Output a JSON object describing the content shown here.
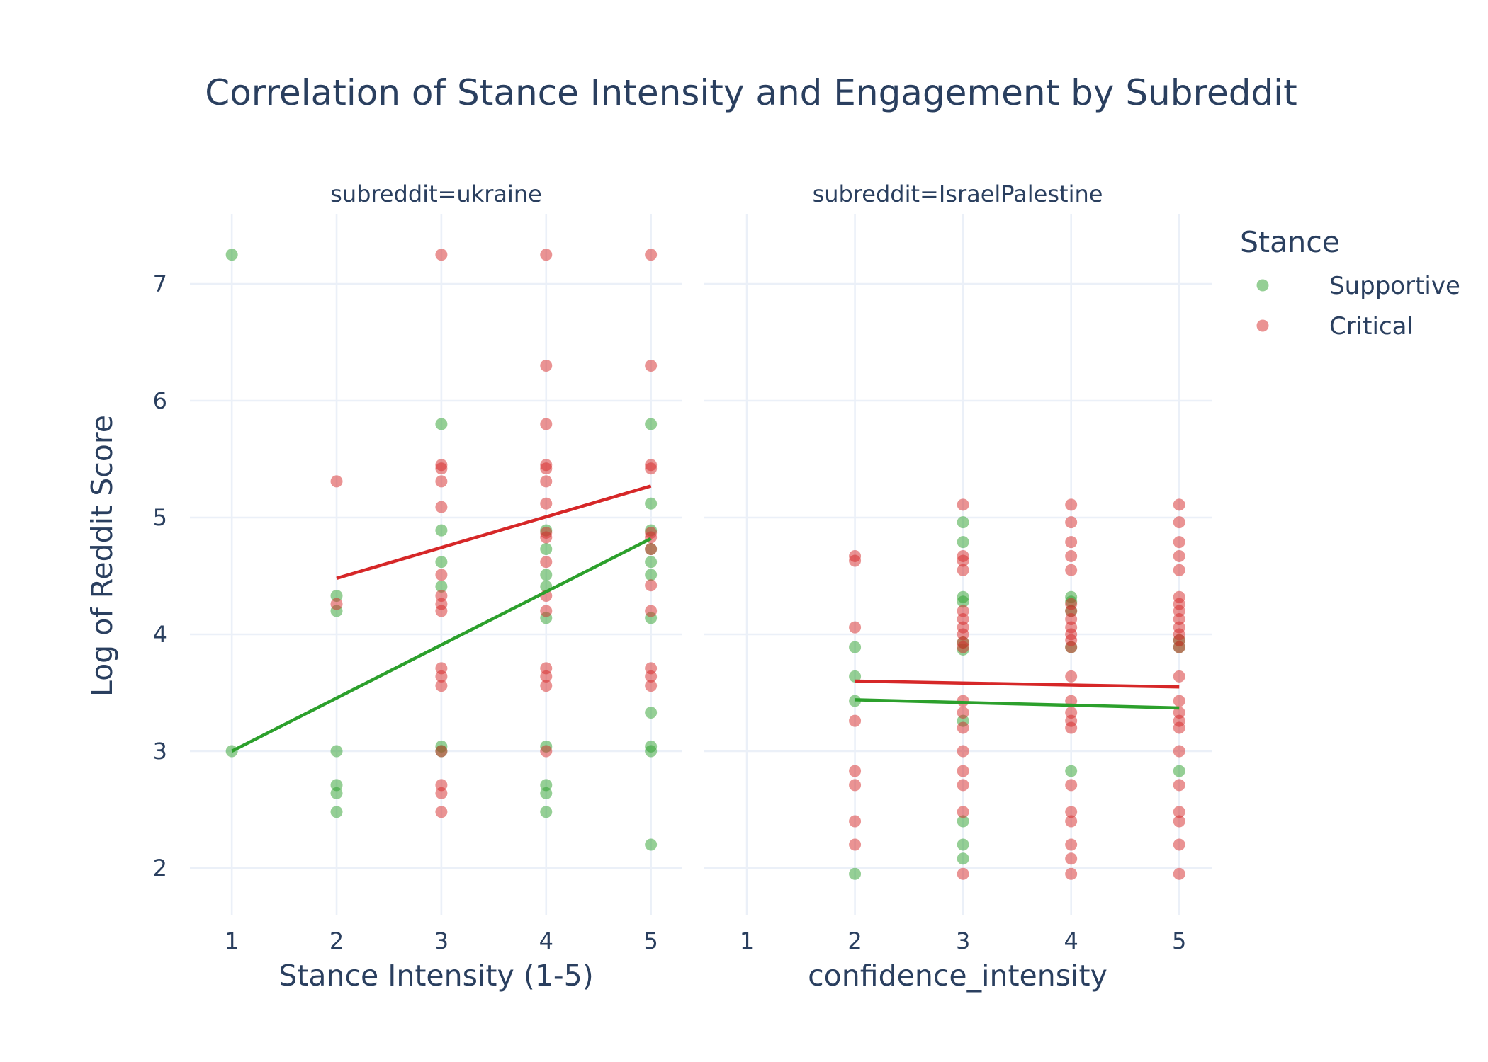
{
  "chart_data": {
    "type": "scatter",
    "title": "Correlation of Stance Intensity and Engagement by Subreddit",
    "ylabel": "Log of Reddit Score",
    "ylim": [
      1.6,
      7.6
    ],
    "yticks": [
      2,
      3,
      4,
      5,
      6,
      7
    ],
    "xlim": [
      0.6,
      5.3
    ],
    "xticks": [
      1,
      2,
      3,
      4,
      5
    ],
    "grid": true,
    "legend": {
      "title": "Stance",
      "position": "top-right",
      "items": [
        {
          "name": "Supportive",
          "color": "#2ca02c"
        },
        {
          "name": "Critical",
          "color": "#d62728"
        }
      ]
    },
    "facets": [
      {
        "label": "subreddit=ukraine",
        "xlabel": "Stance Intensity (1-5)",
        "series": [
          {
            "name": "Supportive",
            "color": "#2ca02c",
            "points": [
              [
                1,
                7.25
              ],
              [
                1,
                3.0
              ],
              [
                2,
                4.33
              ],
              [
                2,
                4.2
              ],
              [
                2,
                3.0
              ],
              [
                2,
                2.71
              ],
              [
                2,
                2.64
              ],
              [
                2,
                2.48
              ],
              [
                3,
                5.8
              ],
              [
                3,
                4.89
              ],
              [
                3,
                4.62
              ],
              [
                3,
                4.41
              ],
              [
                3,
                3.04
              ],
              [
                3,
                3.0
              ],
              [
                4,
                4.89
              ],
              [
                4,
                4.73
              ],
              [
                4,
                4.51
              ],
              [
                4,
                4.41
              ],
              [
                4,
                4.14
              ],
              [
                4,
                3.04
              ],
              [
                4,
                2.71
              ],
              [
                4,
                2.64
              ],
              [
                4,
                2.48
              ],
              [
                5,
                5.8
              ],
              [
                5,
                5.12
              ],
              [
                5,
                4.89
              ],
              [
                5,
                4.73
              ],
              [
                5,
                4.62
              ],
              [
                5,
                4.51
              ],
              [
                5,
                4.14
              ],
              [
                5,
                3.33
              ],
              [
                5,
                3.04
              ],
              [
                5,
                3.0
              ],
              [
                5,
                2.2
              ]
            ],
            "trend": [
              [
                1,
                3.0
              ],
              [
                5,
                4.82
              ]
            ]
          },
          {
            "name": "Critical",
            "color": "#d62728",
            "points": [
              [
                2,
                5.31
              ],
              [
                2,
                4.26
              ],
              [
                3,
                7.25
              ],
              [
                3,
                5.45
              ],
              [
                3,
                5.42
              ],
              [
                3,
                5.31
              ],
              [
                3,
                5.09
              ],
              [
                3,
                4.51
              ],
              [
                3,
                4.33
              ],
              [
                3,
                4.26
              ],
              [
                3,
                4.2
              ],
              [
                3,
                3.71
              ],
              [
                3,
                3.64
              ],
              [
                3,
                3.56
              ],
              [
                3,
                3.0
              ],
              [
                3,
                2.71
              ],
              [
                3,
                2.64
              ],
              [
                3,
                2.48
              ],
              [
                4,
                7.25
              ],
              [
                4,
                6.3
              ],
              [
                4,
                5.8
              ],
              [
                4,
                5.45
              ],
              [
                4,
                5.42
              ],
              [
                4,
                5.31
              ],
              [
                4,
                5.12
              ],
              [
                4,
                4.87
              ],
              [
                4,
                4.83
              ],
              [
                4,
                4.62
              ],
              [
                4,
                4.33
              ],
              [
                4,
                4.2
              ],
              [
                4,
                3.71
              ],
              [
                4,
                3.64
              ],
              [
                4,
                3.56
              ],
              [
                4,
                3.0
              ],
              [
                5,
                7.25
              ],
              [
                5,
                6.3
              ],
              [
                5,
                5.45
              ],
              [
                5,
                5.42
              ],
              [
                5,
                4.87
              ],
              [
                5,
                4.83
              ],
              [
                5,
                4.73
              ],
              [
                5,
                4.42
              ],
              [
                5,
                4.2
              ],
              [
                5,
                3.71
              ],
              [
                5,
                3.64
              ],
              [
                5,
                3.56
              ]
            ],
            "trend": [
              [
                2,
                4.48
              ],
              [
                5,
                5.27
              ]
            ]
          }
        ]
      },
      {
        "label": "subreddit=IsraelPalestine",
        "xlabel": "confidence_intensity",
        "series": [
          {
            "name": "Supportive",
            "color": "#2ca02c",
            "points": [
              [
                2,
                3.89
              ],
              [
                2,
                3.64
              ],
              [
                2,
                3.43
              ],
              [
                2,
                1.95
              ],
              [
                3,
                4.96
              ],
              [
                3,
                4.79
              ],
              [
                3,
                4.32
              ],
              [
                3,
                4.28
              ],
              [
                3,
                3.93
              ],
              [
                3,
                3.87
              ],
              [
                3,
                3.26
              ],
              [
                3,
                2.4
              ],
              [
                3,
                2.2
              ],
              [
                3,
                2.08
              ],
              [
                4,
                4.32
              ],
              [
                4,
                4.28
              ],
              [
                4,
                4.2
              ],
              [
                4,
                3.89
              ],
              [
                4,
                2.83
              ],
              [
                5,
                3.95
              ],
              [
                5,
                3.89
              ],
              [
                5,
                2.83
              ]
            ],
            "trend": [
              [
                2,
                3.44
              ],
              [
                5,
                3.37
              ]
            ]
          },
          {
            "name": "Critical",
            "color": "#d62728",
            "points": [
              [
                2,
                4.67
              ],
              [
                2,
                4.63
              ],
              [
                2,
                4.06
              ],
              [
                2,
                3.26
              ],
              [
                2,
                2.83
              ],
              [
                2,
                2.71
              ],
              [
                2,
                2.4
              ],
              [
                2,
                2.2
              ],
              [
                3,
                5.11
              ],
              [
                3,
                4.67
              ],
              [
                3,
                4.63
              ],
              [
                3,
                4.55
              ],
              [
                3,
                4.2
              ],
              [
                3,
                4.13
              ],
              [
                3,
                4.06
              ],
              [
                3,
                4.0
              ],
              [
                3,
                3.93
              ],
              [
                3,
                3.89
              ],
              [
                3,
                3.43
              ],
              [
                3,
                3.33
              ],
              [
                3,
                3.2
              ],
              [
                3,
                3.0
              ],
              [
                3,
                2.83
              ],
              [
                3,
                2.71
              ],
              [
                3,
                2.48
              ],
              [
                3,
                1.95
              ],
              [
                4,
                5.11
              ],
              [
                4,
                4.96
              ],
              [
                4,
                4.79
              ],
              [
                4,
                4.67
              ],
              [
                4,
                4.55
              ],
              [
                4,
                4.26
              ],
              [
                4,
                4.2
              ],
              [
                4,
                4.13
              ],
              [
                4,
                4.06
              ],
              [
                4,
                4.0
              ],
              [
                4,
                3.95
              ],
              [
                4,
                3.89
              ],
              [
                4,
                3.64
              ],
              [
                4,
                3.43
              ],
              [
                4,
                3.33
              ],
              [
                4,
                3.26
              ],
              [
                4,
                3.2
              ],
              [
                4,
                2.71
              ],
              [
                4,
                2.48
              ],
              [
                4,
                2.4
              ],
              [
                4,
                2.2
              ],
              [
                4,
                2.08
              ],
              [
                4,
                1.95
              ],
              [
                5,
                5.11
              ],
              [
                5,
                4.96
              ],
              [
                5,
                4.79
              ],
              [
                5,
                4.67
              ],
              [
                5,
                4.55
              ],
              [
                5,
                4.32
              ],
              [
                5,
                4.26
              ],
              [
                5,
                4.2
              ],
              [
                5,
                4.13
              ],
              [
                5,
                4.06
              ],
              [
                5,
                4.0
              ],
              [
                5,
                3.95
              ],
              [
                5,
                3.89
              ],
              [
                5,
                3.64
              ],
              [
                5,
                3.43
              ],
              [
                5,
                3.33
              ],
              [
                5,
                3.26
              ],
              [
                5,
                3.2
              ],
              [
                5,
                3.0
              ],
              [
                5,
                2.71
              ],
              [
                5,
                2.48
              ],
              [
                5,
                2.4
              ],
              [
                5,
                2.2
              ],
              [
                5,
                1.95
              ]
            ],
            "trend": [
              [
                2,
                3.6
              ],
              [
                5,
                3.55
              ]
            ]
          }
        ]
      }
    ]
  }
}
